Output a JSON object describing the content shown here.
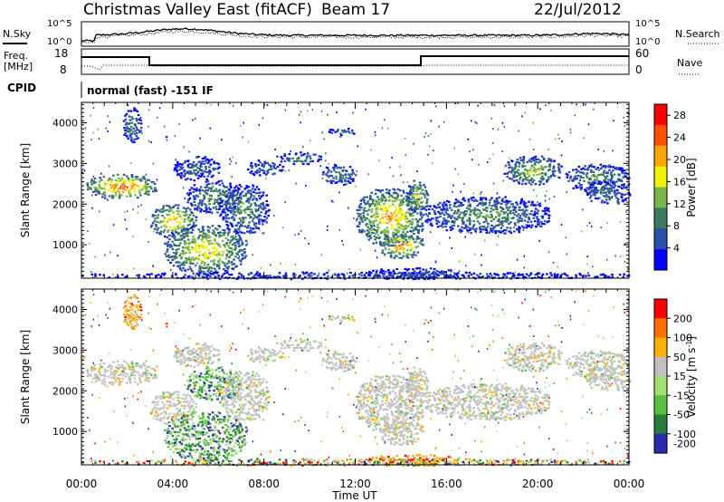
{
  "header": {
    "title": "Christmas Valley East (fitACF)",
    "beam": "Beam 17",
    "date": "22/Jul/2012"
  },
  "top_panels": {
    "nsky_label": "N.Sky",
    "nsearch_label": "N.Search",
    "noise_ticks": [
      "10^5",
      "10^0"
    ],
    "freq_label": "Freq.",
    "freq_unit": "[MHz]",
    "freq_ticks": [
      "18",
      "8"
    ],
    "nave_label": "Nave",
    "nave_ticks": [
      "60",
      "0"
    ],
    "cpid_label": "CPID",
    "cpid_text": "normal (fast) -151 IF"
  },
  "chart_data": [
    {
      "type": "heatmap",
      "title": "",
      "xlabel": "Time UT",
      "ylabel": "Slant Range [km]",
      "x_ticks": [
        "00:00",
        "04:00",
        "08:00",
        "12:00",
        "16:00",
        "20:00",
        "00:00"
      ],
      "y_ticks": [
        1000,
        2000,
        3000,
        4000
      ],
      "xlim": [
        "00:00",
        "24:00"
      ],
      "ylim": [
        180,
        4500
      ],
      "colorbar_label": "Power [dB]",
      "colorbar_ticks": [
        28,
        24,
        20,
        16,
        12,
        8,
        4
      ],
      "colorbar_range": [
        0,
        30
      ],
      "colors": [
        "#0000ff",
        "#2a4fa8",
        "#3a7a5a",
        "#7ab44a",
        "#f0f000",
        "#ffa500",
        "#ff5000",
        "#ff0000"
      ]
    },
    {
      "type": "heatmap",
      "title": "",
      "xlabel": "Time UT",
      "ylabel": "Slant Range [km]",
      "x_ticks": [
        "00:00",
        "04:00",
        "08:00",
        "12:00",
        "16:00",
        "20:00",
        "00:00"
      ],
      "y_ticks": [
        1000,
        2000,
        3000,
        4000
      ],
      "xlim": [
        "00:00",
        "24:00"
      ],
      "ylim": [
        180,
        4500
      ],
      "colorbar_label": "Velocity [m s^-1]",
      "colorbar_ticks": [
        200,
        100,
        50,
        15,
        -15,
        -50,
        -100,
        -200
      ],
      "colors": [
        "#2a2ab0",
        "#2a7a3a",
        "#55c040",
        "#a0e070",
        "#c0c0c0",
        "#ffb000",
        "#ff7000",
        "#ff0000"
      ]
    }
  ]
}
